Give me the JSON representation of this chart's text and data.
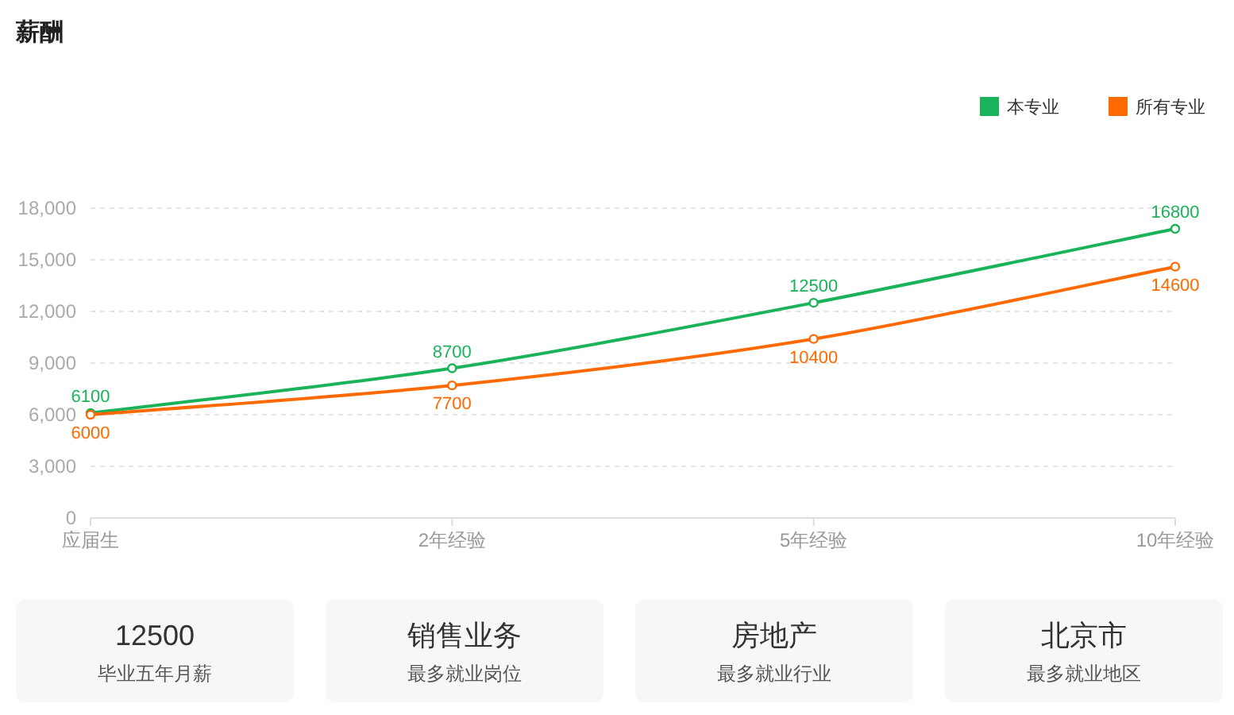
{
  "chart_data": [
    {
      "type": "line",
      "title": "薪酬",
      "categories": [
        "应届生",
        "2年经验",
        "5年经验",
        "10年经验"
      ],
      "series": [
        {
          "name": "本专业",
          "color": "#1bb35a",
          "values": [
            6100,
            8700,
            12500,
            16800
          ]
        },
        {
          "name": "所有专业",
          "color": "#ff6a00",
          "values": [
            6000,
            7700,
            10400,
            14600
          ]
        }
      ],
      "ylim": [
        0,
        18000
      ],
      "yticks": [
        0,
        {
          "value": 3000,
          "label": "3,000"
        },
        {
          "value": 6000,
          "label": "6,000"
        },
        {
          "value": 9000,
          "label": "9,000"
        },
        {
          "value": 12000,
          "label": "12,000"
        },
        {
          "value": 15000,
          "label": "15,000"
        },
        {
          "value": 18000,
          "label": "18,000"
        }
      ],
      "grid": "y",
      "legend": "top right",
      "marker": "circle",
      "line_style": "solid",
      "data_labels": true
    },
    {
      "type": "other",
      "annotations": [
        "12500",
        "毕业五年月薪",
        "销售业务",
        "最多就业岗位",
        "房地产",
        "最多就业行业",
        "北京市",
        "最多就业地区"
      ]
    }
  ]
}
